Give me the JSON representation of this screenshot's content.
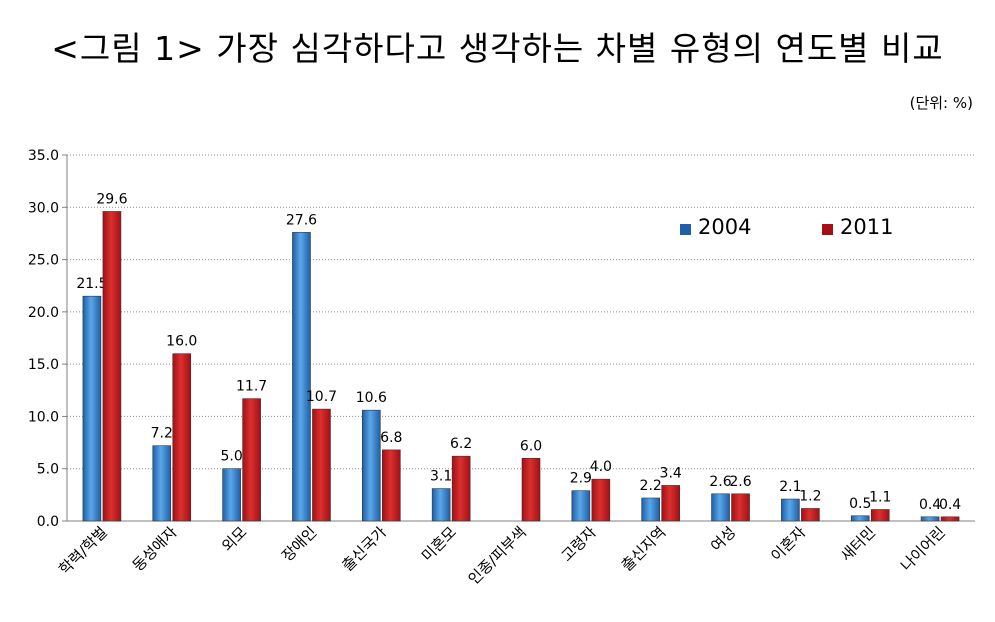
{
  "title": "<그림 1> 가장 심각하다고 생각하는 차별 유형의 연도별 비교",
  "unit": "(단위: %)",
  "colors": {
    "2004": "#1f5fa8",
    "2011": "#a50f15"
  },
  "chart_data": {
    "type": "bar",
    "categories": [
      "학력/학벌",
      "동성애자",
      "외모",
      "장애인",
      "출신국가",
      "미혼모",
      "인종/피부색",
      "고령자",
      "출신지역",
      "여성",
      "이혼자",
      "새터민",
      "나이어린"
    ],
    "series": [
      {
        "name": "2004",
        "values": [
          21.5,
          7.2,
          5.0,
          27.6,
          10.6,
          3.1,
          null,
          2.9,
          2.2,
          2.6,
          2.1,
          0.5,
          0.4
        ]
      },
      {
        "name": "2011",
        "values": [
          29.6,
          16.0,
          11.7,
          10.7,
          6.8,
          6.2,
          6.0,
          4.0,
          3.4,
          2.6,
          1.2,
          1.1,
          0.4
        ]
      }
    ],
    "ylim": [
      0,
      35
    ],
    "yticks": [
      "0.0",
      "5.0",
      "10.0",
      "15.0",
      "20.0",
      "25.0",
      "30.0",
      "35.0"
    ],
    "grid": true,
    "legend": "top-right"
  }
}
